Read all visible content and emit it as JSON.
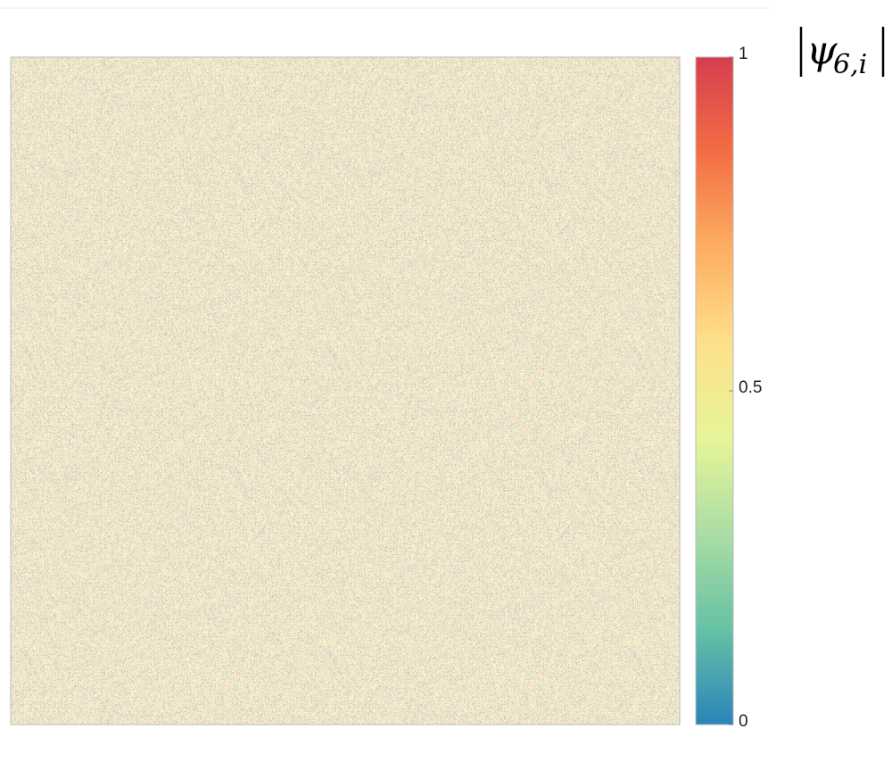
{
  "chart_data": {
    "type": "heatmap",
    "colorbar": {
      "lim": [
        0,
        1
      ],
      "ticks": [
        0,
        0.5,
        1
      ],
      "colormap": [
        "#2b83ba",
        "#66c2a5",
        "#abdda4",
        "#e6f598",
        "#fee08b",
        "#fdae61",
        "#f46d43",
        "#d53e4f"
      ],
      "label": {
        "symbol": "ψ",
        "subscript": "6,i"
      }
    }
  }
}
